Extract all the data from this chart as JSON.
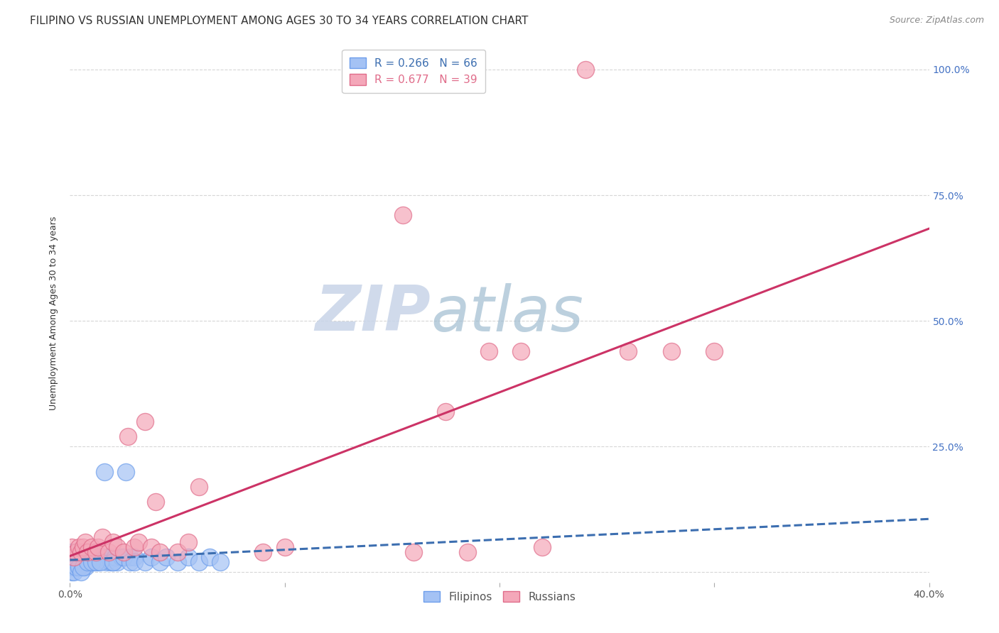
{
  "title": "FILIPINO VS RUSSIAN UNEMPLOYMENT AMONG AGES 30 TO 34 YEARS CORRELATION CHART",
  "source": "Source: ZipAtlas.com",
  "ylabel": "Unemployment Among Ages 30 to 34 years",
  "xlim": [
    0.0,
    0.4
  ],
  "ylim": [
    -0.02,
    1.05
  ],
  "plot_ylim": [
    0.0,
    1.05
  ],
  "xtick_left_label": "0.0%",
  "xtick_right_label": "40.0%",
  "yticks": [
    0.0,
    0.25,
    0.5,
    0.75,
    1.0
  ],
  "yticklabels": [
    "",
    "25.0%",
    "50.0%",
    "75.0%",
    "100.0%"
  ],
  "yticklabels_right": [
    "",
    "25.0%",
    "50.0%",
    "75.0%",
    "100.0%"
  ],
  "filipino_color": "#a4c2f4",
  "russian_color": "#f4a7b9",
  "filipino_edge_color": "#6d9eeb",
  "russian_edge_color": "#e06c8a",
  "filipino_line_color": "#3c6eb0",
  "russian_line_color": "#cc3366",
  "legend_filipino_R": "0.266",
  "legend_filipino_N": "66",
  "legend_russian_R": "0.677",
  "legend_russian_N": "39",
  "watermark_zip": "ZIP",
  "watermark_atlas": "atlas",
  "watermark_color_zip": "#c8d4e8",
  "watermark_color_atlas": "#a0bcd0",
  "grid_color": "#cccccc",
  "background_color": "#ffffff",
  "title_fontsize": 11,
  "axis_label_fontsize": 9,
  "tick_fontsize": 10,
  "legend_fontsize": 11,
  "source_fontsize": 9,
  "filipinos_x": [
    0.001,
    0.001,
    0.001,
    0.001,
    0.002,
    0.002,
    0.002,
    0.003,
    0.003,
    0.003,
    0.004,
    0.004,
    0.005,
    0.005,
    0.005,
    0.006,
    0.006,
    0.007,
    0.007,
    0.008,
    0.008,
    0.009,
    0.009,
    0.01,
    0.01,
    0.011,
    0.011,
    0.012,
    0.013,
    0.014,
    0.015,
    0.016,
    0.017,
    0.018,
    0.019,
    0.02,
    0.021,
    0.022,
    0.024,
    0.026,
    0.028,
    0.03,
    0.001,
    0.002,
    0.003,
    0.004,
    0.005,
    0.006,
    0.008,
    0.01,
    0.012,
    0.014,
    0.016,
    0.02,
    0.025,
    0.028,
    0.03,
    0.035,
    0.038,
    0.042,
    0.045,
    0.05,
    0.055,
    0.06,
    0.065,
    0.07
  ],
  "filipinos_y": [
    0.01,
    0.02,
    0.03,
    0.04,
    0.01,
    0.02,
    0.03,
    0.01,
    0.02,
    0.04,
    0.01,
    0.03,
    0.01,
    0.02,
    0.03,
    0.02,
    0.03,
    0.01,
    0.03,
    0.02,
    0.04,
    0.02,
    0.03,
    0.02,
    0.04,
    0.02,
    0.03,
    0.03,
    0.02,
    0.03,
    0.03,
    0.03,
    0.02,
    0.03,
    0.02,
    0.02,
    0.03,
    0.02,
    0.03,
    0.2,
    0.03,
    0.03,
    0.0,
    0.0,
    0.01,
    0.01,
    0.0,
    0.01,
    0.02,
    0.02,
    0.02,
    0.02,
    0.2,
    0.02,
    0.03,
    0.02,
    0.02,
    0.02,
    0.03,
    0.02,
    0.03,
    0.02,
    0.03,
    0.02,
    0.03,
    0.02
  ],
  "russians_x": [
    0.001,
    0.002,
    0.003,
    0.004,
    0.005,
    0.006,
    0.007,
    0.008,
    0.01,
    0.012,
    0.013,
    0.015,
    0.018,
    0.02,
    0.022,
    0.025,
    0.027,
    0.03,
    0.032,
    0.035,
    0.038,
    0.04,
    0.042,
    0.05,
    0.055,
    0.06,
    0.09,
    0.1,
    0.155,
    0.16,
    0.175,
    0.185,
    0.195,
    0.21,
    0.22,
    0.24,
    0.26,
    0.28,
    0.3
  ],
  "russians_y": [
    0.05,
    0.03,
    0.04,
    0.05,
    0.04,
    0.05,
    0.06,
    0.04,
    0.05,
    0.04,
    0.05,
    0.07,
    0.04,
    0.06,
    0.05,
    0.04,
    0.27,
    0.05,
    0.06,
    0.3,
    0.05,
    0.14,
    0.04,
    0.04,
    0.06,
    0.17,
    0.04,
    0.05,
    0.71,
    0.04,
    0.32,
    0.04,
    0.44,
    0.44,
    0.05,
    1.0,
    0.44,
    0.44,
    0.44
  ]
}
